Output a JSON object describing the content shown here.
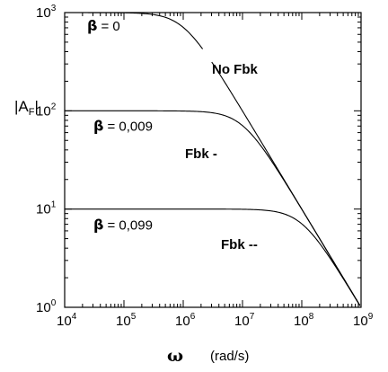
{
  "chart_data": {
    "type": "line",
    "title": "",
    "xlabel": {
      "symbol": "ω",
      "unit": "(rad/s)"
    },
    "ylabel": {
      "base": "|A",
      "sub": "F",
      "end": "|"
    },
    "x_scale": "log",
    "y_scale": "log",
    "xlim": [
      10000,
      1000000000
    ],
    "ylim": [
      1,
      1000
    ],
    "x_ticks": [
      {
        "base": "10",
        "exp": "4"
      },
      {
        "base": "10",
        "exp": "5"
      },
      {
        "base": "10",
        "exp": "6"
      },
      {
        "base": "10",
        "exp": "7"
      },
      {
        "base": "10",
        "exp": "8"
      },
      {
        "base": "10",
        "exp": "9"
      }
    ],
    "y_ticks": [
      {
        "base": "10",
        "exp": "0"
      },
      {
        "base": "10",
        "exp": "1"
      },
      {
        "base": "10",
        "exp": "2"
      },
      {
        "base": "10",
        "exp": "3"
      }
    ],
    "grid": false,
    "series": [
      {
        "beta_symbol": "β",
        "beta_value": "= 0",
        "annotation": "No Fbk",
        "dc_gain": 1000,
        "corner_rad_s": 1000000,
        "dashed_after_rad_s": 2200000
      },
      {
        "beta_symbol": "β",
        "beta_value": "= 0,009",
        "annotation": "Fbk -",
        "dc_gain": 100,
        "corner_rad_s": 10000000
      },
      {
        "beta_symbol": "β",
        "beta_value": "= 0,099",
        "annotation": "Fbk --",
        "dc_gain": 10,
        "corner_rad_s": 100000000
      }
    ]
  }
}
